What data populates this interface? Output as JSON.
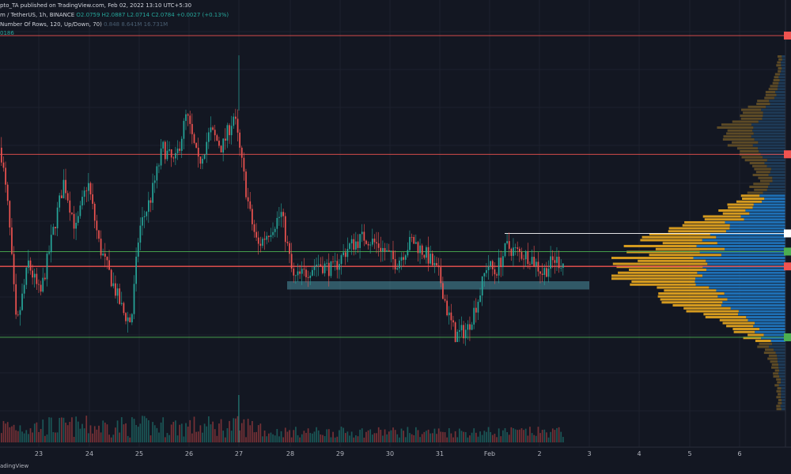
{
  "header": {
    "publisher_line": "pto_TA published on TradingView.com, Feb 02, 2022 13:10 UTC+5:30",
    "symbol_line_prefix": "m / TetherUS, 1h, BINANCE",
    "ohlc": {
      "open": "O2.0759",
      "high": "H2.0887",
      "low": "L2.0714",
      "close": "C2.0784",
      "change": "+0.0027 (+0.13%)"
    },
    "indicator_line": "Number Of Rows, 120, Up/Down, 70)",
    "indicator_values": "0.848  8.641M  16.731M",
    "volume_value": "0186"
  },
  "footer": {
    "logo_text": "adingView"
  },
  "colors": {
    "background": "#131722",
    "up": "#26a69a",
    "down": "#ef5350",
    "vp_up": "#2962ff",
    "vp_down": "#f5a623",
    "resistance": "#ef5350",
    "support": "#4caf50",
    "zone": "#4a8fa0",
    "level_white": "#ffffff"
  },
  "chart_data": {
    "type": "candlestick",
    "x_tick_labels": [
      "23",
      "24",
      "25",
      "26",
      "27",
      "28",
      "29",
      "30",
      "31",
      "Feb",
      "2",
      "3",
      "4",
      "5",
      "6"
    ],
    "y_range": [
      1.6,
      2.75
    ],
    "overlay": {
      "horizontal_levels": [
        {
          "name": "resistance-top",
          "value": 2.69,
          "color": "red"
        },
        {
          "name": "resistance-mid",
          "value": 2.33,
          "color": "red"
        },
        {
          "name": "white-level",
          "value": 2.09,
          "color": "white"
        },
        {
          "name": "support-upper",
          "value": 2.035,
          "color": "green"
        },
        {
          "name": "resistance-poc",
          "value": 1.99,
          "color": "red"
        },
        {
          "name": "support-lower",
          "value": 1.775,
          "color": "green"
        }
      ],
      "zone": {
        "low": 1.92,
        "high": 1.945
      }
    },
    "volume_profile": {
      "rows": 120,
      "up_down": "Up/Down",
      "value_area": 70
    },
    "candles": [],
    "volumes": []
  }
}
